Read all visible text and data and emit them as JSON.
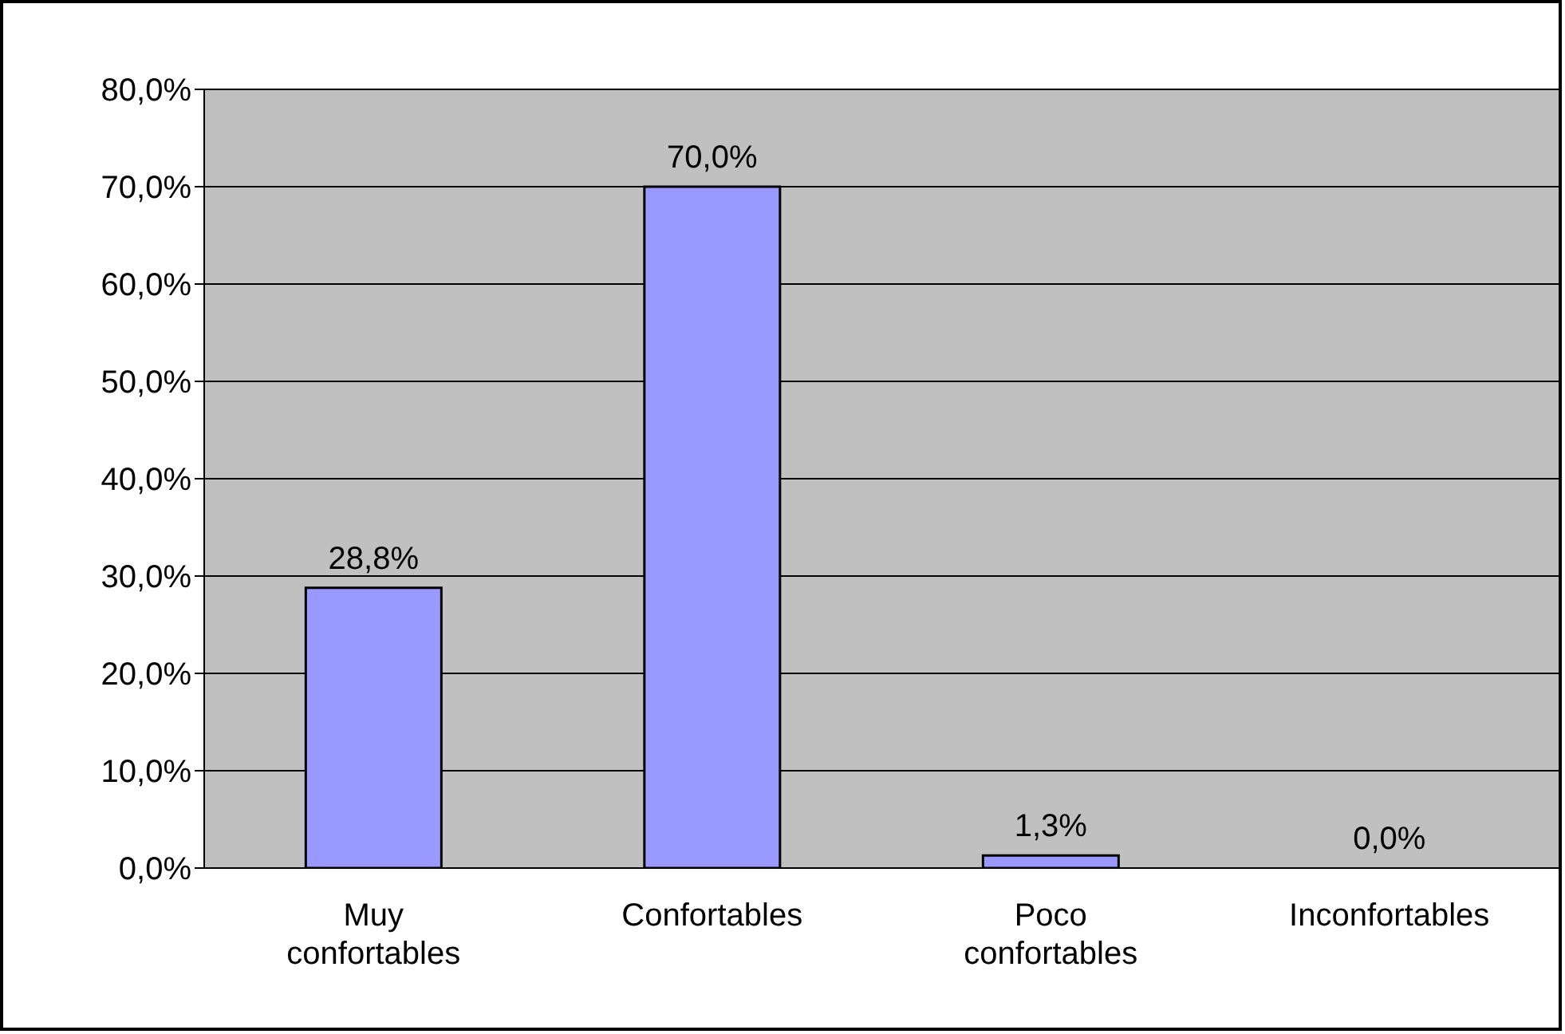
{
  "chart_data": {
    "type": "bar",
    "categories": [
      "Muy confortables",
      "Confortables",
      "Poco confortables",
      "Inconfortables"
    ],
    "values": [
      28.8,
      70.0,
      1.3,
      0.0
    ],
    "value_labels": [
      "28,8%",
      "70,0%",
      "1,3%",
      "0,0%"
    ],
    "color": "#9999ff",
    "ylim": [
      0,
      80
    ],
    "yticks": [
      {
        "value": 0,
        "label": "0,0%"
      },
      {
        "value": 10,
        "label": "10,0%"
      },
      {
        "value": 20,
        "label": "20,0%"
      },
      {
        "value": 30,
        "label": "30,0%"
      },
      {
        "value": 40,
        "label": "40,0%"
      },
      {
        "value": 50,
        "label": "50,0%"
      },
      {
        "value": 60,
        "label": "60,0%"
      },
      {
        "value": 70,
        "label": "70,0%"
      },
      {
        "value": 80,
        "label": "80,0%"
      }
    ],
    "grid": "y"
  }
}
